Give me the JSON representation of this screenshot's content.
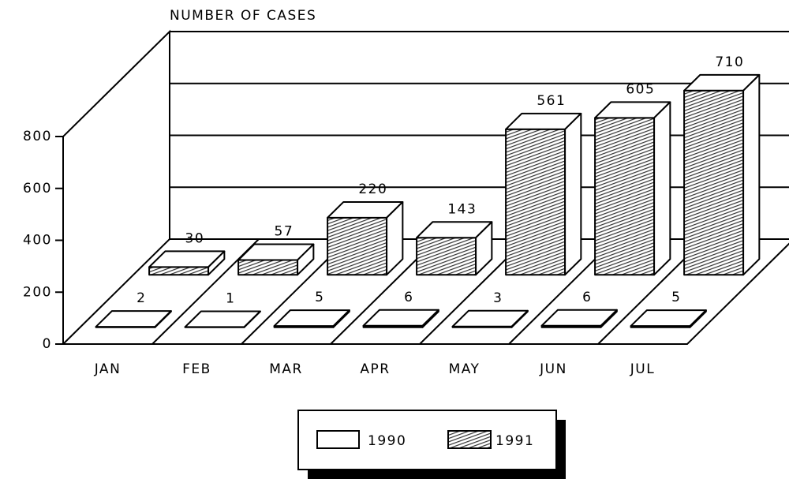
{
  "chart_data": {
    "type": "bar3d",
    "title": "NUMBER OF CASES",
    "categories": [
      "JAN",
      "FEB",
      "MAR",
      "APR",
      "MAY",
      "JUN",
      "JUL"
    ],
    "series": [
      {
        "name": "1990",
        "color": "#ffffff",
        "values": [
          2,
          1,
          5,
          6,
          3,
          6,
          5
        ]
      },
      {
        "name": "1991",
        "color": "#555555",
        "values": [
          30,
          57,
          220,
          143,
          561,
          605,
          710
        ]
      }
    ],
    "ylim": [
      0,
      800
    ],
    "yticks": [
      0,
      200,
      400,
      600,
      800
    ],
    "grid": true
  }
}
